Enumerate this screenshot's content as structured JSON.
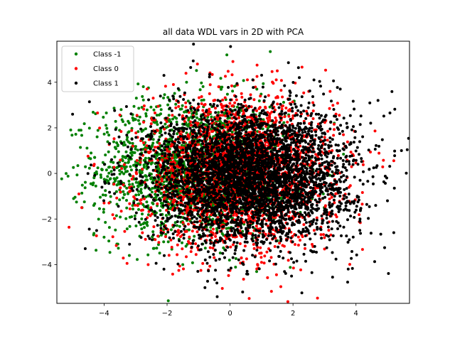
{
  "chart_data": {
    "type": "scatter",
    "title": "all data WDL vars in 2D with PCA",
    "xlabel": "",
    "ylabel": "",
    "xlim": [
      -5.5,
      5.7
    ],
    "ylim": [
      -5.7,
      5.8
    ],
    "xticks": [
      -4,
      -2,
      0,
      2,
      4
    ],
    "yticks": [
      -4,
      -2,
      0,
      2,
      4
    ],
    "xtick_labels": [
      "−4",
      "−2",
      "0",
      "2",
      "4"
    ],
    "ytick_labels": [
      "−4",
      "−2",
      "0",
      "2",
      "4"
    ],
    "grid": false,
    "legend_position": "top-left",
    "series": [
      {
        "name": "Class -1",
        "color": "#008000",
        "approx_center": [
          -1.2,
          0.2
        ],
        "approx_spread": [
          1.5,
          1.5
        ],
        "approx_count": 1800,
        "sample_points": [
          [
            -0.1,
            5.2
          ],
          [
            -4.7,
            -1.5
          ],
          [
            -4.3,
            0.7
          ],
          [
            -3.9,
            1.8
          ],
          [
            -3.2,
            -3.6
          ],
          [
            -2.8,
            2.9
          ],
          [
            -1.5,
            -4.0
          ],
          [
            -4.0,
            -2.8
          ]
        ]
      },
      {
        "name": "Class 0",
        "color": "#ff0000",
        "approx_center": [
          0.3,
          0.0
        ],
        "approx_spread": [
          1.5,
          1.6
        ],
        "approx_count": 2500,
        "sample_points": [
          [
            1.5,
            4.5
          ],
          [
            -4.8,
            -0.9
          ],
          [
            -4.0,
            -1.3
          ],
          [
            2.5,
            3.6
          ],
          [
            -2.6,
            -4.0
          ],
          [
            3.2,
            -2.7
          ],
          [
            -1.8,
            3.9
          ],
          [
            1.0,
            -3.9
          ]
        ]
      },
      {
        "name": "Class 1",
        "color": "#000000",
        "approx_center": [
          0.7,
          -0.1
        ],
        "approx_spread": [
          1.6,
          1.5
        ],
        "approx_count": 4000,
        "sample_points": [
          [
            -5.0,
            2.6
          ],
          [
            5.2,
            -2.6
          ],
          [
            4.7,
            3.2
          ],
          [
            0.4,
            -5.2
          ],
          [
            -4.6,
            -3.3
          ],
          [
            -2.1,
            4.3
          ],
          [
            2.2,
            4.2
          ],
          [
            5.0,
            -1.2
          ],
          [
            -2.1,
            -4.2
          ],
          [
            3.5,
            3.7
          ]
        ]
      }
    ]
  }
}
